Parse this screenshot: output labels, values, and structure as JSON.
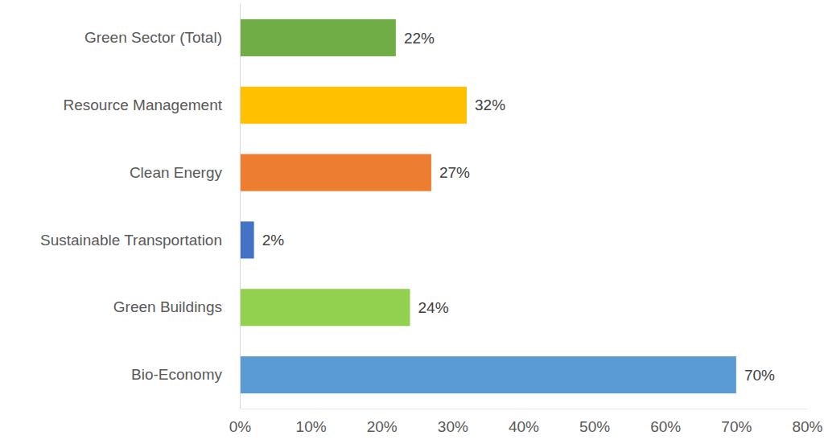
{
  "chart_data": {
    "type": "bar",
    "orientation": "horizontal",
    "categories": [
      "Green Sector (Total)",
      "Resource Management",
      "Clean Energy",
      "Sustainable Transportation",
      "Green Buildings",
      "Bio-Economy"
    ],
    "values": [
      22,
      32,
      27,
      2,
      24,
      70
    ],
    "value_labels": [
      "22%",
      "32%",
      "27%",
      "2%",
      "24%",
      "70%"
    ],
    "colors": [
      "#70ad47",
      "#ffc000",
      "#ed7d31",
      "#4472c4",
      "#92d050",
      "#5b9bd5"
    ],
    "xlim": [
      0,
      80
    ],
    "xticks": [
      {
        "value": 0,
        "label": "0%"
      },
      {
        "value": 10,
        "label": "10%"
      },
      {
        "value": 20,
        "label": "20%"
      },
      {
        "value": 30,
        "label": "30%"
      },
      {
        "value": 40,
        "label": "40%"
      },
      {
        "value": 50,
        "label": "50%"
      },
      {
        "value": 60,
        "label": "60%"
      },
      {
        "value": 70,
        "label": "70%"
      },
      {
        "value": 80,
        "label": "80%"
      }
    ],
    "grid": false,
    "data_labels": true
  }
}
